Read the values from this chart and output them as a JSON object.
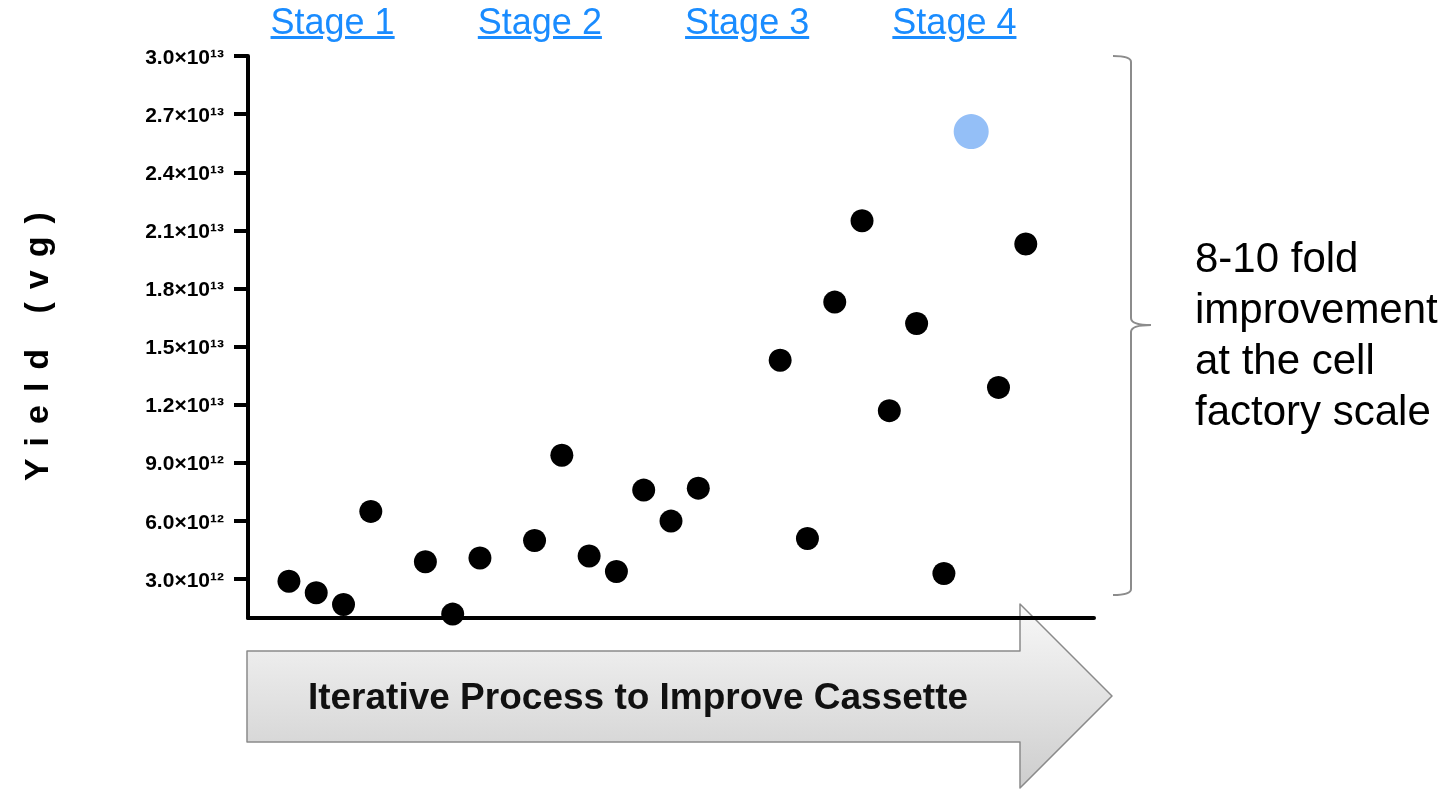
{
  "chart_data": {
    "type": "scatter",
    "ylabel": "Yield (vg)",
    "xlabel": "Iterative Process to Improve Cassette",
    "annotations": [
      "Stage 1",
      "Stage 2",
      "Stage 3",
      "Stage 4",
      "8-10 fold improvement at the cell factory scale"
    ],
    "categories": [
      null,
      null,
      null,
      null,
      null,
      null,
      null,
      null,
      null,
      null,
      null,
      null,
      null,
      null,
      null,
      null,
      null,
      null,
      null,
      null,
      null,
      null,
      null,
      null,
      null,
      null,
      null,
      null,
      null,
      null,
      null
    ],
    "series": [
      {
        "color": "#000000",
        "values": [
          null,
          2900000000000.0,
          2300000000000.0,
          1700000000000.0,
          6500000000000.0,
          null,
          3900000000000.0,
          1200000000000.0,
          4100000000000.0,
          null,
          5000000000000.0,
          9400000000000.0,
          4200000000000.0,
          3400000000000.0,
          7600000000000.0,
          6000000000000.0,
          7700000000000.0,
          null,
          null,
          14300000000000.0,
          5100000000000.0,
          17300000000000.0,
          21500000000000.0,
          11700000000000.0,
          16200000000000.0,
          3300000000000.0,
          null,
          12900000000000.0,
          20300000000000.0,
          null,
          null
        ]
      },
      {
        "color": "#94bff7",
        "values": [
          null,
          null,
          null,
          null,
          null,
          null,
          null,
          null,
          null,
          null,
          null,
          null,
          null,
          null,
          null,
          null,
          null,
          null,
          null,
          null,
          null,
          null,
          null,
          null,
          null,
          null,
          26100000000000.0,
          null,
          null,
          null,
          null
        ]
      }
    ],
    "ylim": [
      1000000000000.0,
      30000000000000.0
    ],
    "yticks": [
      {
        "value": 3000000000000.0,
        "label": "3.0×10¹²"
      },
      {
        "value": 6000000000000.0,
        "label": "6.0×10¹²"
      },
      {
        "value": 9000000000000.0,
        "label": "9.0×10¹²"
      },
      {
        "value": 12000000000000.0,
        "label": "1.2×10¹³"
      },
      {
        "value": 15000000000000.0,
        "label": "1.5×10¹³"
      },
      {
        "value": 18000000000000.0,
        "label": "1.8×10¹³"
      },
      {
        "value": 21000000000000.0,
        "label": "2.1×10¹³"
      },
      {
        "value": 24000000000000.0,
        "label": "2.4×10¹³"
      },
      {
        "value": 27000000000000.0,
        "label": "2.7×10¹³"
      },
      {
        "value": 30000000000000.0,
        "label": "3.0×10¹³"
      }
    ],
    "grid": false,
    "marker": "circle",
    "tick_labels": "y"
  }
}
